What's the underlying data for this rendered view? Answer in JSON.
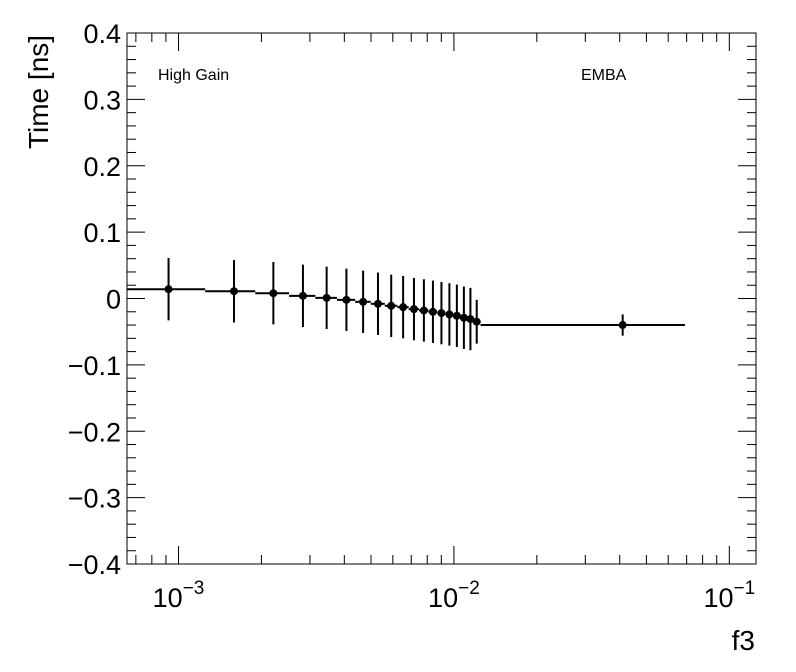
{
  "chart_data": {
    "type": "scatter",
    "xlabel": "f3",
    "ylabel": "Time [ns]",
    "xscale": "log",
    "xlim": [
      0.00065,
      0.125
    ],
    "ylim": [
      -0.4,
      0.4
    ],
    "grid": false,
    "annotations": {
      "left": "High Gain",
      "right": "EMBA"
    },
    "x_ticks": [
      {
        "value": 0.001,
        "base": "10",
        "exp": "−3"
      },
      {
        "value": 0.01,
        "base": "10",
        "exp": "−2"
      },
      {
        "value": 0.1,
        "base": "10",
        "exp": "−1"
      }
    ],
    "y_ticks": [
      {
        "value": 0.4,
        "label": "0.4"
      },
      {
        "value": 0.3,
        "label": "0.3"
      },
      {
        "value": 0.2,
        "label": "0.2"
      },
      {
        "value": 0.1,
        "label": "0.1"
      },
      {
        "value": 0,
        "label": "0"
      },
      {
        "value": -0.1,
        "label": "−0.1"
      },
      {
        "value": -0.2,
        "label": "−0.2"
      },
      {
        "value": -0.3,
        "label": "−0.3"
      },
      {
        "value": -0.4,
        "label": "−0.4"
      }
    ],
    "series": [
      {
        "points": [
          {
            "x": 0.00092,
            "y": 0.014,
            "err": 0.047,
            "xlo": 0.00065,
            "xhi": 0.00125
          },
          {
            "x": 0.00159,
            "y": 0.011,
            "err": 0.047,
            "xlo": 0.00125,
            "xhi": 0.0019
          },
          {
            "x": 0.00221,
            "y": 0.008,
            "err": 0.047,
            "xlo": 0.0019,
            "xhi": 0.00252
          },
          {
            "x": 0.00283,
            "y": 0.004,
            "err": 0.047,
            "xlo": 0.00252,
            "xhi": 0.00314
          },
          {
            "x": 0.00345,
            "y": 0.001,
            "err": 0.047,
            "xlo": 0.00314,
            "xhi": 0.00376
          },
          {
            "x": 0.00407,
            "y": -0.002,
            "err": 0.047,
            "xlo": 0.00376,
            "xhi": 0.00438
          },
          {
            "x": 0.00468,
            "y": -0.005,
            "err": 0.047,
            "xlo": 0.00438,
            "xhi": 0.00499
          },
          {
            "x": 0.0053,
            "y": -0.008,
            "err": 0.047,
            "xlo": 0.00499,
            "xhi": 0.00561
          },
          {
            "x": 0.00592,
            "y": -0.011,
            "err": 0.047,
            "xlo": 0.00561,
            "xhi": 0.00623
          },
          {
            "x": 0.00654,
            "y": -0.013,
            "err": 0.047,
            "xlo": 0.00623,
            "xhi": 0.00685
          },
          {
            "x": 0.00716,
            "y": -0.016,
            "err": 0.047,
            "xlo": 0.00685,
            "xhi": 0.00747
          },
          {
            "x": 0.00778,
            "y": -0.018,
            "err": 0.047,
            "xlo": 0.00747,
            "xhi": 0.00808
          },
          {
            "x": 0.00839,
            "y": -0.02,
            "err": 0.047,
            "xlo": 0.00808,
            "xhi": 0.0087
          },
          {
            "x": 0.00901,
            "y": -0.022,
            "err": 0.047,
            "xlo": 0.0087,
            "xhi": 0.00932
          },
          {
            "x": 0.00963,
            "y": -0.024,
            "err": 0.047,
            "xlo": 0.00932,
            "xhi": 0.00994
          },
          {
            "x": 0.01025,
            "y": -0.026,
            "err": 0.047,
            "xlo": 0.00994,
            "xhi": 0.01056
          },
          {
            "x": 0.01087,
            "y": -0.029,
            "err": 0.047,
            "xlo": 0.01056,
            "xhi": 0.01118
          },
          {
            "x": 0.01148,
            "y": -0.031,
            "err": 0.047,
            "xlo": 0.01118,
            "xhi": 0.0118
          },
          {
            "x": 0.0121,
            "y": -0.035,
            "err": 0.033,
            "xlo": 0.0118,
            "xhi": 0.0125
          },
          {
            "x": 0.041,
            "y": -0.04,
            "err": 0.016,
            "xlo": 0.0125,
            "xhi": 0.069
          }
        ]
      }
    ]
  }
}
